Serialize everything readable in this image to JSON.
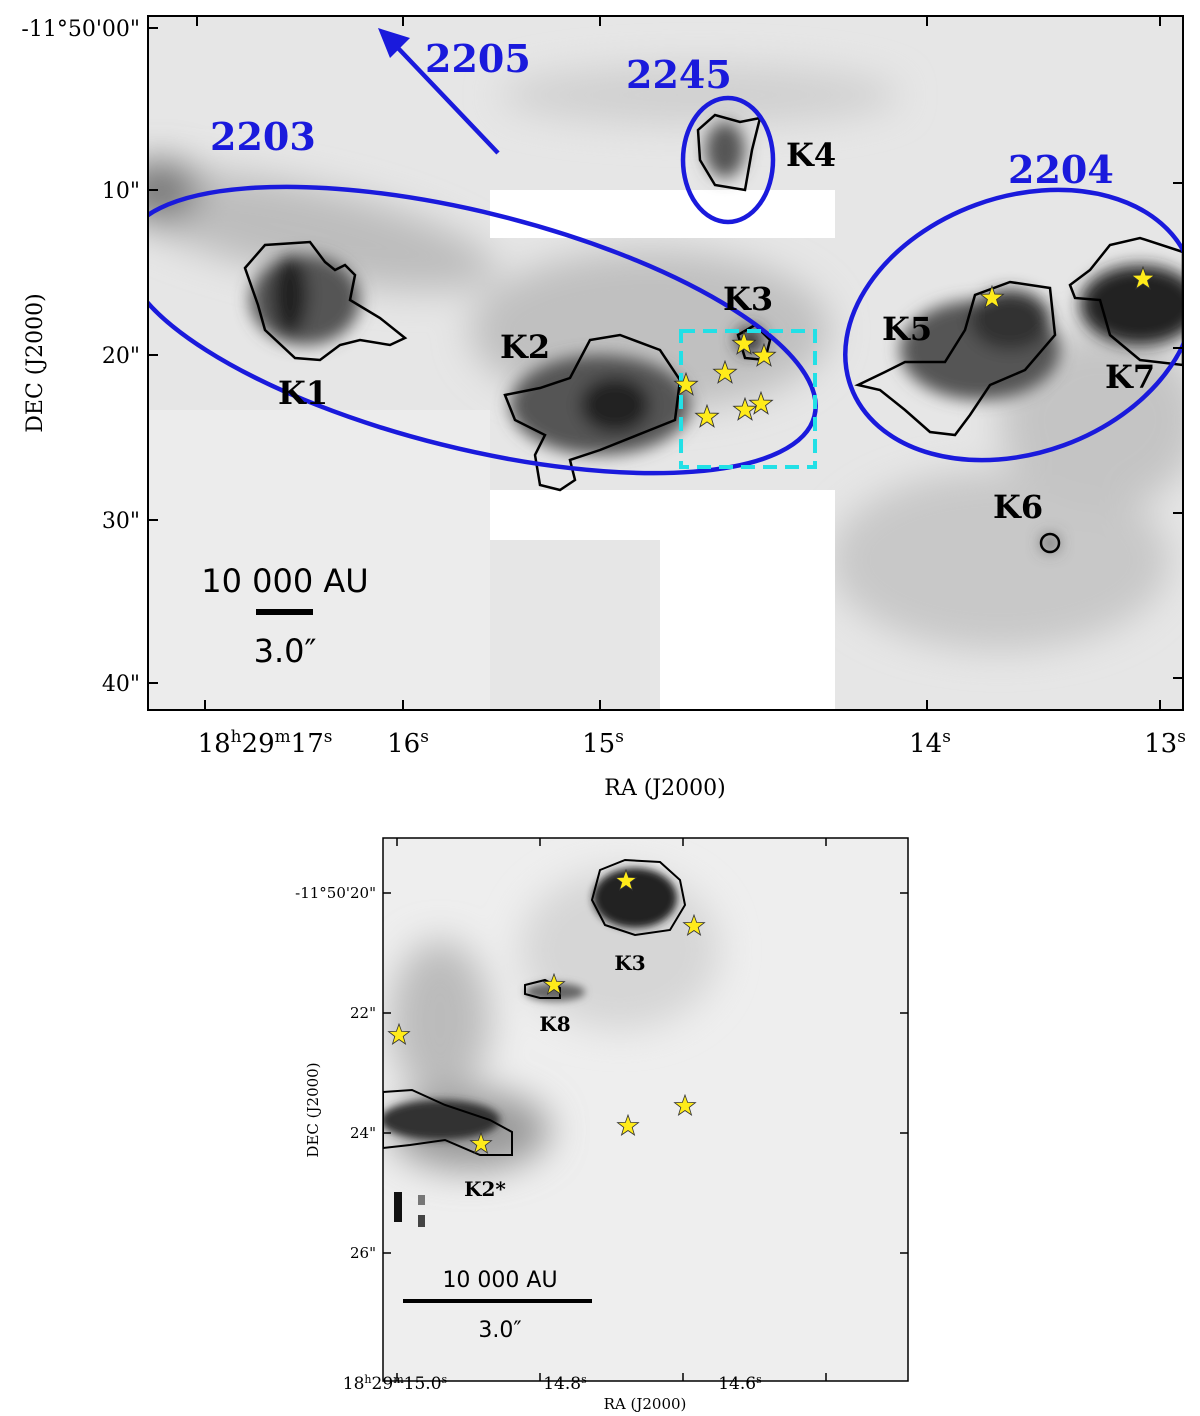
{
  "top_panel": {
    "x_ticks": [
      [
        "18",
        "h",
        "29",
        "m",
        "17",
        "s"
      ],
      [
        "16",
        "s"
      ],
      [
        "15",
        "s"
      ],
      [
        "14",
        "s"
      ],
      [
        "13",
        "s"
      ]
    ],
    "y_ticks": [
      "-11°50'00\"",
      "10\"",
      "20\"",
      "30\"",
      "40\""
    ],
    "x_label": "RA (J2000)",
    "y_label": "DEC (J2000)",
    "region_labels": [
      "2205",
      "2245",
      "2203",
      "2204"
    ],
    "clump_labels": [
      "K1",
      "K2",
      "K3",
      "K4",
      "K5",
      "K6",
      "K7"
    ],
    "scale_bar": [
      "10 000 AU",
      "3.0″"
    ]
  },
  "bottom_panel": {
    "x_ticks": [
      [
        "18",
        "h",
        "29",
        "m",
        "15.0",
        "s"
      ],
      [
        "14.8",
        "s"
      ],
      [
        "14.6",
        "s"
      ]
    ],
    "y_ticks": [
      "-11°50'20\"",
      "22\"",
      "24\"",
      "26\""
    ],
    "x_label": "RA (J2000)",
    "y_label": "DEC (J2000)",
    "clump_labels": [
      "K3",
      "K8",
      "K2*"
    ],
    "scale_bar": [
      "10 000 AU",
      "3.0″"
    ]
  }
}
